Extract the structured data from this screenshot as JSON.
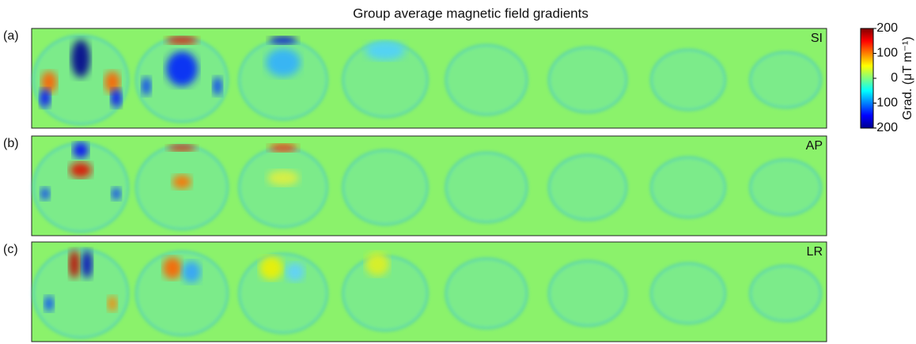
{
  "title": "Group average magnetic field gradients",
  "panels": [
    {
      "label": "(a)",
      "component": "SI"
    },
    {
      "label": "(b)",
      "component": "AP"
    },
    {
      "label": "(c)",
      "component": "LR"
    }
  ],
  "colorbar": {
    "label": "Grad. (μT m⁻¹)",
    "lim": [
      -200,
      200
    ],
    "ticks": [
      -200,
      -100,
      0,
      100,
      200
    ]
  }
}
